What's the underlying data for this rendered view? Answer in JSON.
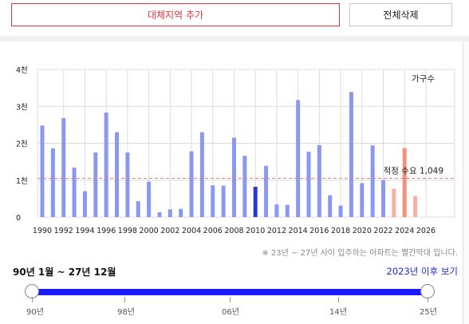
{
  "toolbar": {
    "add_label": "대체지역 추가",
    "delete_label": "전체삭제"
  },
  "chart_data": {
    "type": "bar",
    "categories": [
      "1990",
      "1991",
      "1992",
      "1993",
      "1994",
      "1995",
      "1996",
      "1997",
      "1998",
      "1999",
      "2000",
      "2001",
      "2002",
      "2003",
      "2004",
      "2005",
      "2006",
      "2007",
      "2008",
      "2009",
      "2010",
      "2011",
      "2012",
      "2013",
      "2014",
      "2015",
      "2016",
      "2017",
      "2018",
      "2019",
      "2020",
      "2021",
      "2022",
      "2023",
      "2024",
      "2025"
    ],
    "values": [
      2480,
      1860,
      2680,
      1340,
      700,
      1750,
      2830,
      2300,
      1750,
      430,
      960,
      130,
      210,
      220,
      1780,
      2300,
      860,
      850,
      2150,
      1660,
      820,
      1390,
      340,
      330,
      3170,
      1770,
      1950,
      590,
      310,
      3390,
      920,
      1940,
      1000,
      770,
      1870,
      570
    ],
    "x_tick_labels": [
      "1990",
      "1992",
      "1994",
      "1996",
      "1998",
      "2000",
      "2002",
      "2004",
      "2006",
      "2008",
      "2010",
      "2012",
      "2014",
      "2016",
      "2018",
      "2020",
      "2022",
      "2024",
      "2026"
    ],
    "y_tick_labels": [
      "4천",
      "3천",
      "2천",
      "1천",
      "0"
    ],
    "ylim": [
      0,
      4000
    ],
    "legend": "가구수",
    "reference": {
      "value": 1049,
      "label": "적정 수요 1,049"
    },
    "colors": {
      "normal": "#8a98f2",
      "highlight": "#2a35d8",
      "future": "#f6b1a3",
      "future_highlight": "#f5907c",
      "reference": "#f08080",
      "grid": "#dcdcdc"
    },
    "highlight_index": 20,
    "future_from_index": 33,
    "future_highlight_index": 34,
    "grid": true
  },
  "note": "※ 23년 ~ 27년 사이 입주하는 아파트는 빨간막대 입니다.",
  "range": {
    "label": "90년 1월 ~ 27년 12월",
    "link": "2023년 이후 보기",
    "tick_labels": [
      "90년",
      "98년",
      "06년",
      "14년",
      "25년"
    ]
  }
}
